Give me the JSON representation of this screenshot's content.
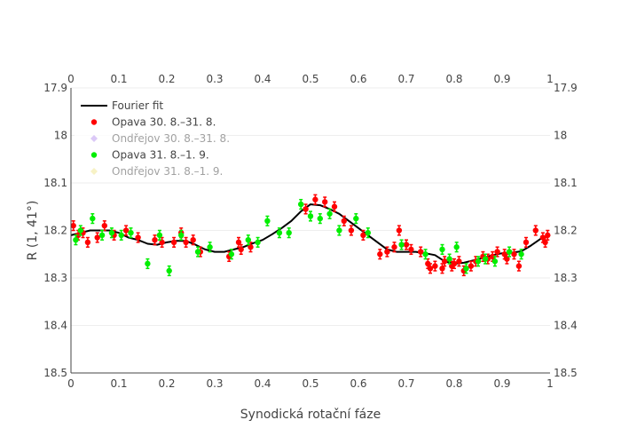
{
  "chart_data": {
    "type": "scatter",
    "title": "",
    "xlabel": "Synodická rotační fáze",
    "ylabel": "R (1, 41°)",
    "xlim": [
      0,
      1
    ],
    "ylim": [
      17.9,
      18.5
    ],
    "y_reversed": true,
    "x_ticks": [
      0,
      0.1,
      0.2,
      0.3,
      0.4,
      0.5,
      0.6,
      0.7,
      0.8,
      0.9,
      1
    ],
    "x_tick_labels": [
      "0",
      "0.1",
      "0.2",
      "0.3",
      "0.4",
      "0.5",
      "0.6",
      "0.7",
      "0.8",
      "0.9",
      "1"
    ],
    "y_ticks": [
      17.9,
      18,
      18.1,
      18.2,
      18.3,
      18.4,
      18.5
    ],
    "y_tick_labels": [
      "17.9",
      "18",
      "18.1",
      "18.2",
      "18.3",
      "18.4",
      "18.5"
    ],
    "mirror_axes": true,
    "legend_position": "top-left",
    "error_bar": 0.01,
    "series": [
      {
        "name": "Fourier fit",
        "kind": "line",
        "color": "#000000",
        "visible": true,
        "x": [
          0,
          0.02,
          0.04,
          0.06,
          0.08,
          0.1,
          0.12,
          0.14,
          0.16,
          0.18,
          0.2,
          0.22,
          0.24,
          0.26,
          0.28,
          0.3,
          0.32,
          0.34,
          0.36,
          0.38,
          0.4,
          0.42,
          0.44,
          0.46,
          0.48,
          0.5,
          0.52,
          0.54,
          0.56,
          0.58,
          0.6,
          0.62,
          0.64,
          0.66,
          0.68,
          0.7,
          0.72,
          0.74,
          0.76,
          0.78,
          0.8,
          0.82,
          0.84,
          0.86,
          0.88,
          0.9,
          0.92,
          0.94,
          0.96,
          0.98,
          1
        ],
        "y": [
          18.21,
          18.205,
          18.2,
          18.2,
          18.2,
          18.205,
          18.215,
          18.22,
          18.228,
          18.23,
          18.225,
          18.222,
          18.222,
          18.23,
          18.24,
          18.245,
          18.245,
          18.24,
          18.235,
          18.227,
          18.22,
          18.208,
          18.195,
          18.18,
          18.16,
          18.145,
          18.147,
          18.155,
          18.165,
          18.18,
          18.195,
          18.21,
          18.225,
          18.24,
          18.245,
          18.245,
          18.245,
          18.248,
          18.252,
          18.265,
          18.27,
          18.268,
          18.263,
          18.258,
          18.252,
          18.248,
          18.247,
          18.244,
          18.232,
          18.218,
          18.21
        ]
      },
      {
        "name": "Opava 30. 8.–31. 8.",
        "kind": "markers",
        "color": "#ff0000",
        "marker": "circle",
        "visible": true,
        "x": [
          0.005,
          0.015,
          0.025,
          0.035,
          0.055,
          0.07,
          0.09,
          0.115,
          0.14,
          0.175,
          0.19,
          0.215,
          0.23,
          0.24,
          0.255,
          0.27,
          0.33,
          0.35,
          0.355,
          0.375,
          0.49,
          0.51,
          0.53,
          0.55,
          0.57,
          0.585,
          0.61,
          0.645,
          0.66,
          0.675,
          0.685,
          0.7,
          0.71,
          0.73,
          0.745,
          0.75,
          0.76,
          0.775,
          0.78,
          0.795,
          0.8,
          0.81,
          0.82,
          0.835,
          0.845,
          0.86,
          0.87,
          0.88,
          0.89,
          0.905,
          0.91,
          0.925,
          0.935,
          0.95,
          0.97,
          0.985,
          0.99,
          0.995
        ],
        "y": [
          18.19,
          18.21,
          18.205,
          18.225,
          18.215,
          18.19,
          18.21,
          18.2,
          18.215,
          18.22,
          18.225,
          18.225,
          18.205,
          18.225,
          18.22,
          18.245,
          18.255,
          18.225,
          18.24,
          18.235,
          18.155,
          18.135,
          18.14,
          18.15,
          18.18,
          18.2,
          18.21,
          18.25,
          18.245,
          18.235,
          18.2,
          18.23,
          18.24,
          18.245,
          18.27,
          18.28,
          18.275,
          18.28,
          18.265,
          18.275,
          18.27,
          18.265,
          18.285,
          18.275,
          18.265,
          18.255,
          18.26,
          18.255,
          18.245,
          18.25,
          18.26,
          18.25,
          18.275,
          18.225,
          18.2,
          18.215,
          18.225,
          18.21
        ]
      },
      {
        "name": "Ondřejov 30. 8.–31. 8.",
        "kind": "markers",
        "color": "#b794f0",
        "marker": "diamond",
        "visible": false,
        "x": [],
        "y": []
      },
      {
        "name": "Opava 31. 8.–1. 9.",
        "kind": "markers",
        "color": "#00ee00",
        "marker": "circle",
        "visible": true,
        "x": [
          0.01,
          0.02,
          0.045,
          0.065,
          0.085,
          0.105,
          0.125,
          0.16,
          0.185,
          0.205,
          0.23,
          0.265,
          0.29,
          0.335,
          0.37,
          0.39,
          0.41,
          0.435,
          0.455,
          0.48,
          0.5,
          0.52,
          0.54,
          0.56,
          0.595,
          0.62,
          0.69,
          0.74,
          0.775,
          0.79,
          0.805,
          0.825,
          0.85,
          0.865,
          0.885,
          0.915,
          0.94
        ],
        "y": [
          18.22,
          18.2,
          18.175,
          18.21,
          18.205,
          18.21,
          18.205,
          18.27,
          18.21,
          18.285,
          18.21,
          18.245,
          18.235,
          18.25,
          18.22,
          18.225,
          18.18,
          18.205,
          18.205,
          18.145,
          18.17,
          18.175,
          18.165,
          18.2,
          18.175,
          18.205,
          18.23,
          18.25,
          18.24,
          18.26,
          18.235,
          18.28,
          18.265,
          18.26,
          18.265,
          18.245,
          18.25
        ]
      },
      {
        "name": "Ondřejov 31. 8.–1. 9.",
        "kind": "markers",
        "color": "#f0e68c",
        "marker": "diamond",
        "visible": false,
        "x": [],
        "y": []
      }
    ]
  }
}
